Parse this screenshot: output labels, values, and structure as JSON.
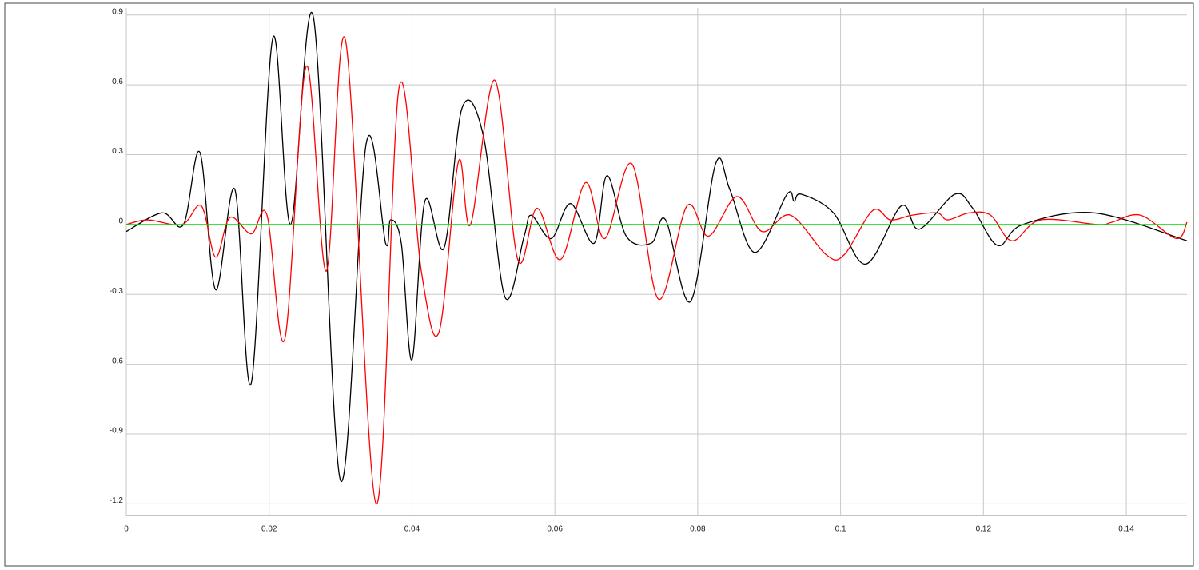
{
  "chart_data": {
    "type": "line",
    "xlim": [
      0,
      0.1485
    ],
    "ylim": [
      -1.25,
      0.93
    ],
    "xticks": [
      0,
      0.02,
      0.04,
      0.06,
      0.08,
      0.1,
      0.12,
      0.14
    ],
    "yticks": [
      0.9,
      0.6,
      0.3,
      0,
      -0.3,
      -0.6,
      -0.9,
      -1.2
    ],
    "grid": true,
    "series": [
      {
        "color": "#000000",
        "x": [
          0,
          0.005,
          0.008,
          0.0103,
          0.0125,
          0.0152,
          0.0175,
          0.0205,
          0.023,
          0.0262,
          0.03,
          0.0336,
          0.0363,
          0.037,
          0.0385,
          0.04,
          0.0418,
          0.0445,
          0.047,
          0.05,
          0.053,
          0.0557,
          0.0567,
          0.0595,
          0.0622,
          0.0655,
          0.0673,
          0.07,
          0.0735,
          0.0755,
          0.079,
          0.0825,
          0.0845,
          0.088,
          0.0925,
          0.0935,
          0.0945,
          0.099,
          0.1035,
          0.1085,
          0.111,
          0.116,
          0.1185,
          0.122,
          0.1255,
          0.1355,
          0.1485
        ],
        "values": [
          -0.03,
          0.05,
          0.0,
          0.31,
          -0.28,
          0.15,
          -0.68,
          0.8,
          0.0,
          0.89,
          -1.1,
          0.35,
          -0.08,
          0.02,
          -0.08,
          -0.58,
          0.1,
          -0.1,
          0.5,
          0.38,
          -0.31,
          -0.05,
          0.04,
          -0.06,
          0.09,
          -0.08,
          0.21,
          -0.05,
          -0.08,
          0.02,
          -0.33,
          0.26,
          0.15,
          -0.12,
          0.13,
          0.1,
          0.13,
          0.05,
          -0.17,
          0.08,
          -0.02,
          0.13,
          0.07,
          -0.09,
          0.0,
          0.05,
          -0.07
        ]
      },
      {
        "color": "#ff0000",
        "x": [
          0,
          0.003,
          0.0078,
          0.0105,
          0.0125,
          0.0145,
          0.0175,
          0.0197,
          0.0222,
          0.0252,
          0.028,
          0.0307,
          0.035,
          0.0382,
          0.0413,
          0.0438,
          0.0465,
          0.0482,
          0.0516,
          0.0548,
          0.0575,
          0.0608,
          0.0643,
          0.067,
          0.0708,
          0.0745,
          0.0785,
          0.0815,
          0.0855,
          0.089,
          0.093,
          0.098,
          0.1005,
          0.1045,
          0.107,
          0.11,
          0.1135,
          0.115,
          0.118,
          0.121,
          0.124,
          0.128,
          0.136,
          0.138,
          0.142,
          0.147,
          0.1485
        ],
        "values": [
          0.0,
          0.02,
          0.0,
          0.08,
          -0.14,
          0.03,
          -0.04,
          0.04,
          -0.49,
          0.68,
          -0.2,
          0.79,
          -1.2,
          0.59,
          -0.2,
          -0.46,
          0.27,
          0.0,
          0.62,
          -0.15,
          0.07,
          -0.15,
          0.18,
          -0.06,
          0.26,
          -0.32,
          0.08,
          -0.05,
          0.12,
          -0.03,
          0.04,
          -0.13,
          -0.13,
          0.06,
          0.02,
          0.04,
          0.05,
          0.02,
          0.05,
          0.04,
          -0.07,
          0.02,
          0.0,
          0.01,
          0.04,
          -0.06,
          0.01
        ]
      },
      {
        "color": "#00dd00",
        "x": [
          0,
          0.1485
        ],
        "values": [
          0,
          0
        ]
      }
    ]
  }
}
